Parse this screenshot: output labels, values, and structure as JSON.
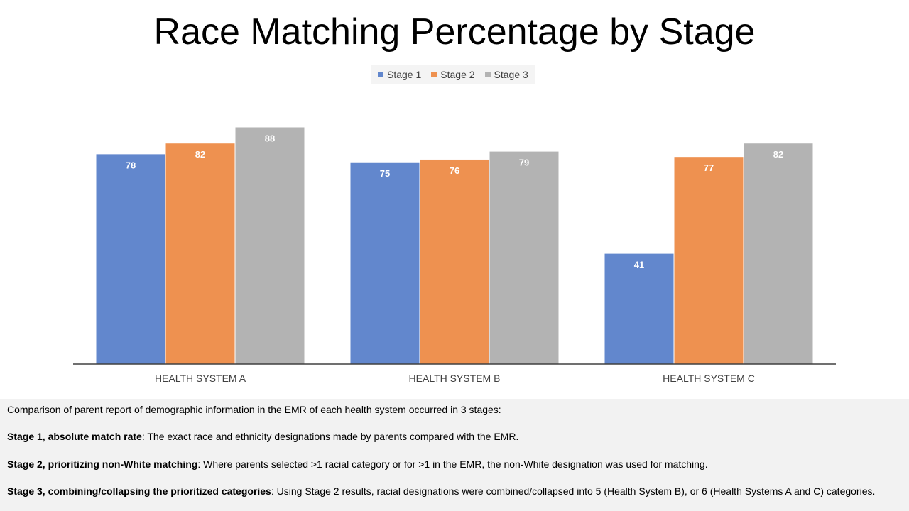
{
  "colors": {
    "stage1": "#6287cd",
    "stage2": "#ee9150",
    "stage3": "#b3b3b3",
    "axis": "#404040",
    "label": "#ffffff"
  },
  "chart_data": {
    "type": "bar",
    "title": "Race Matching Percentage by Stage",
    "categories": [
      "HEALTH SYSTEM A",
      "HEALTH SYSTEM B",
      "HEALTH SYSTEM C"
    ],
    "series": [
      {
        "name": "Stage 1",
        "values": [
          78,
          75,
          41
        ]
      },
      {
        "name": "Stage 2",
        "values": [
          82,
          76,
          77
        ]
      },
      {
        "name": "Stage 3",
        "values": [
          88,
          79,
          82
        ]
      }
    ],
    "ylim": [
      0,
      100
    ],
    "legend_position": "top",
    "grid": false,
    "data_labels": true
  },
  "notes": {
    "intro": "Comparison of parent report of demographic information in the EMR of each health system occurred in 3 stages:",
    "stage1_label": "Stage 1, absolute match rate",
    "stage1_text": ": The exact race and ethnicity designations made by parents compared with the EMR.",
    "stage2_label": "Stage 2, prioritizing non-White matching",
    "stage2_text": ": Where parents selected >1 racial category or for >1 in the EMR, the non-White designation was used for matching.",
    "stage3_label": "Stage 3, combining/collapsing the prioritized categories",
    "stage3_text": ": Using Stage 2 results, racial designations were combined/collapsed into 5 (Health System B), or 6 (Health Systems A and C) categories."
  }
}
